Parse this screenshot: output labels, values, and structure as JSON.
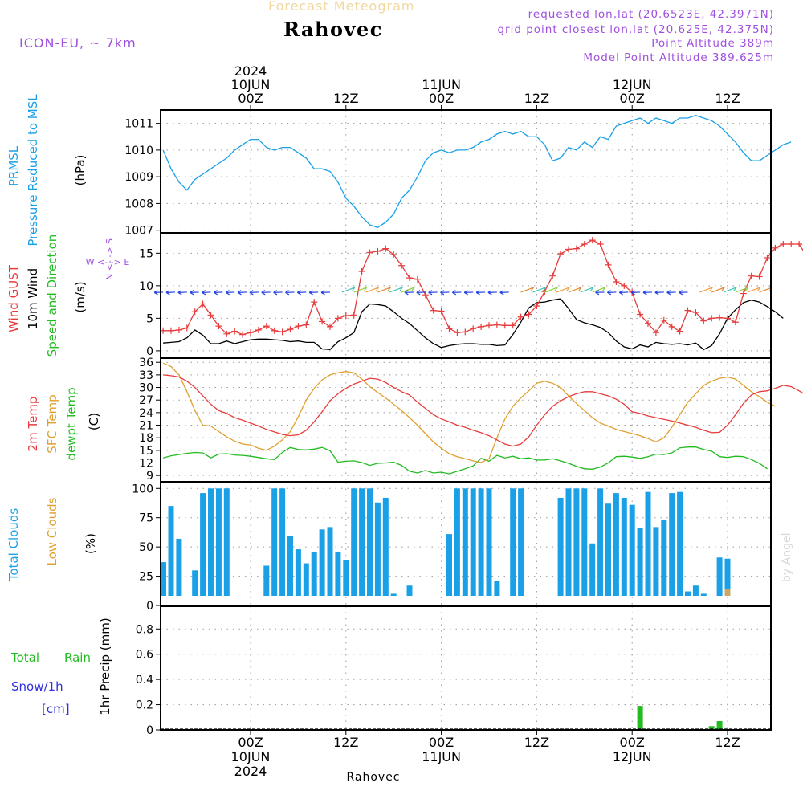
{
  "header": {
    "title": "Forecast Meteogram",
    "location": "Rahovec",
    "model": "ICON-EU, ~ 7km",
    "requested": "requested lon,lat (20.6523E, 42.3971N)",
    "grid_point": "grid point closest lon,lat (20.625E, 42.375N)",
    "point_alt": "Point Altitude 389m",
    "model_alt": "Model Point Altitude 389.625m"
  },
  "footer": {
    "location": "Rahovec"
  },
  "watermark": "by Angel",
  "time_axis": {
    "top_labels": [
      {
        "t": 0,
        "lines": [
          "2024",
          "10JUN",
          "00Z"
        ]
      },
      {
        "t": 12,
        "lines": [
          "12Z"
        ]
      },
      {
        "t": 24,
        "lines": [
          "11JUN",
          "00Z"
        ]
      },
      {
        "t": 36,
        "lines": [
          "12Z"
        ]
      },
      {
        "t": 48,
        "lines": [
          "12JUN",
          "00Z"
        ]
      },
      {
        "t": 60,
        "lines": [
          "12Z"
        ]
      }
    ],
    "bottom_labels": [
      {
        "t": 0,
        "lines": [
          "00Z",
          "10JUN",
          "2024"
        ]
      },
      {
        "t": 12,
        "lines": [
          "12Z"
        ]
      },
      {
        "t": 24,
        "lines": [
          "00Z",
          "11JUN"
        ]
      },
      {
        "t": 36,
        "lines": [
          "12Z"
        ]
      },
      {
        "t": 48,
        "lines": [
          "00Z",
          "12JUN"
        ]
      },
      {
        "t": 60,
        "lines": [
          "12Z"
        ]
      }
    ]
  },
  "panel_labels": {
    "pressure": {
      "lines": [
        {
          "text": "PRMSL",
          "color": "#1aa0e6"
        },
        {
          "text": "Pressure Reduced to MSL",
          "color": "#1aa0e6"
        }
      ],
      "unit": "(hPa)"
    },
    "wind": {
      "lines": [
        {
          "text": "Wind GUST",
          "color": "#e83c3c"
        },
        {
          "text": "10m Wind",
          "color": "#000000"
        },
        {
          "text": "Speed and Direction",
          "color": "#22bb22"
        }
      ],
      "unit": "(m/s)",
      "compass_ns": "N <- -> S",
      "compass_we": "W <- -> E"
    },
    "temp": {
      "lines": [
        {
          "text": "2m Temp",
          "color": "#e83c3c"
        },
        {
          "text": "SFC Temp",
          "color": "#e0a030"
        },
        {
          "text": "dewpt Temp",
          "color": "#22bb22"
        }
      ],
      "unit": "(C)"
    },
    "clouds": {
      "lines": [
        {
          "text": "Total Clouds",
          "color": "#1aa0e6"
        },
        {
          "text": "Low Clouds",
          "color": "#e0a030"
        }
      ],
      "unit": "(%)"
    },
    "precip": {
      "legend_total": "Total",
      "legend_rain": "Rain",
      "legend_snow": "Snow/1h",
      "legend_cm": "[cm]",
      "axis_label": "1hr Precip (mm)"
    }
  },
  "chart_data": [
    {
      "type": "line",
      "title": "",
      "ylabel": "(hPa)",
      "ylim": [
        1006.9,
        1011.5
      ],
      "yticks": [
        1007,
        1008,
        1009,
        1010,
        1011
      ],
      "x_start": -11,
      "x_step": 1,
      "colors": {
        "line": "#1aa0e6"
      },
      "series": [
        {
          "name": "PRMSL",
          "values": [
            1010.0,
            1009.3,
            1008.8,
            1008.5,
            1008.9,
            1009.1,
            1009.3,
            1009.5,
            1009.7,
            1010.0,
            1010.2,
            1010.4,
            1010.4,
            1010.1,
            1010.0,
            1010.1,
            1010.1,
            1009.9,
            1009.7,
            1009.3,
            1009.3,
            1009.2,
            1008.8,
            1008.2,
            1007.9,
            1007.5,
            1007.2,
            1007.1,
            1007.3,
            1007.6,
            1008.2,
            1008.5,
            1009.0,
            1009.6,
            1009.9,
            1010.0,
            1009.9,
            1010.0,
            1010.0,
            1010.1,
            1010.3,
            1010.4,
            1010.6,
            1010.7,
            1010.6,
            1010.7,
            1010.5,
            1010.5,
            1010.2,
            1009.6,
            1009.7,
            1010.1,
            1010.0,
            1010.3,
            1010.1,
            1010.5,
            1010.4,
            1010.9,
            1011.0,
            1011.1,
            1011.2,
            1011.0,
            1011.2,
            1011.1,
            1011.0,
            1011.2,
            1011.2,
            1011.3,
            1011.2,
            1011.1,
            1010.9,
            1010.6,
            1010.3,
            1009.9,
            1009.6,
            1009.6,
            1009.8,
            1010.0,
            1010.2,
            1010.3
          ]
        }
      ]
    },
    {
      "type": "line",
      "title": "",
      "ylabel": "(m/s)",
      "ylim": [
        -1,
        18
      ],
      "yticks": [
        0,
        5,
        10,
        15
      ],
      "x_start": -11,
      "x_step": 1,
      "colors": {
        "gust": "#e83c3c",
        "wind": "#000000"
      },
      "series": [
        {
          "name": "Wind GUST",
          "values": [
            3.1,
            3.1,
            3.2,
            3.5,
            6.0,
            7.2,
            5.5,
            3.8,
            2.6,
            3.0,
            2.5,
            2.8,
            3.2,
            3.8,
            3.1,
            2.9,
            3.3,
            3.8,
            4.0,
            7.5,
            4.5,
            3.7,
            5.0,
            5.4,
            5.5,
            12.2,
            15.1,
            15.3,
            15.7,
            14.8,
            13.1,
            11.2,
            11.0,
            8.6,
            6.2,
            6.1,
            3.4,
            2.8,
            2.9,
            3.4,
            3.7,
            3.9,
            4.0,
            3.9,
            3.9,
            5.2,
            5.6,
            6.9,
            9.1,
            11.5,
            14.9,
            15.6,
            15.7,
            16.4,
            17.0,
            16.4,
            13.2,
            10.6,
            10.0,
            9.0,
            5.6,
            4.2,
            2.8,
            4.7,
            3.7,
            3.0,
            6.2,
            5.9,
            4.6,
            5.0,
            5.1,
            5.0,
            4.4,
            8.8,
            11.5,
            11.4,
            14.3,
            15.8,
            16.4,
            16.4,
            16.4,
            14.5,
            12.9
          ]
        },
        {
          "name": "10m Wind",
          "values": [
            1.2,
            1.3,
            1.4,
            2.0,
            3.2,
            2.4,
            1.1,
            1.1,
            1.5,
            1.1,
            1.4,
            1.7,
            1.8,
            1.8,
            1.7,
            1.6,
            1.4,
            1.5,
            1.3,
            1.3,
            0.3,
            0.2,
            1.4,
            2.0,
            2.8,
            6.0,
            7.2,
            7.1,
            6.9,
            6.0,
            5.0,
            4.2,
            3.1,
            2.0,
            1.1,
            0.5,
            0.8,
            1.0,
            1.1,
            1.1,
            1.0,
            1.0,
            0.8,
            0.9,
            2.5,
            4.4,
            6.6,
            7.4,
            7.5,
            7.8,
            8.0,
            6.5,
            4.8,
            4.3,
            4.0,
            3.6,
            2.8,
            1.5,
            0.6,
            0.3,
            0.9,
            0.6,
            1.3,
            1.1,
            1.0,
            1.1,
            0.9,
            1.2,
            0.2,
            0.8,
            2.6,
            5.0,
            6.3,
            7.4,
            7.8,
            7.5,
            6.8,
            6.0,
            5.0
          ]
        }
      ]
    },
    {
      "type": "line",
      "title": "",
      "ylabel": "(C)",
      "ylim": [
        7.5,
        37
      ],
      "yticks": [
        9,
        12,
        15,
        18,
        21,
        24,
        27,
        30,
        33,
        36
      ],
      "x_start": -11,
      "x_step": 1,
      "colors": {
        "t2m": "#e83c3c",
        "sfc": "#e0a030",
        "dew": "#22bb22"
      },
      "series": [
        {
          "name": "2m Temp",
          "values": [
            33.0,
            32.8,
            32.5,
            31.5,
            30.0,
            28.0,
            26.0,
            24.5,
            23.8,
            22.8,
            22.2,
            21.5,
            20.8,
            20.0,
            19.4,
            18.8,
            18.5,
            18.7,
            19.8,
            21.8,
            24.2,
            26.8,
            28.5,
            29.8,
            30.8,
            31.5,
            32.2,
            32.0,
            31.2,
            30.0,
            29.0,
            28.2,
            26.5,
            25.0,
            23.5,
            22.5,
            21.8,
            21.0,
            20.5,
            19.8,
            19.2,
            18.5,
            17.5,
            16.5,
            16.0,
            16.5,
            18.2,
            21.0,
            23.5,
            25.5,
            26.8,
            27.8,
            28.5,
            29.0,
            29.0,
            28.5,
            28.0,
            27.2,
            26.0,
            24.2,
            23.8,
            23.2,
            22.8,
            22.4,
            22.0,
            21.5,
            21.0,
            20.5,
            19.8,
            19.2,
            19.3,
            21.0,
            23.5,
            26.2,
            28.2,
            29.0,
            29.2,
            29.8,
            30.5,
            30.2,
            29.2,
            28.0,
            26.5
          ]
        },
        {
          "name": "SFC Temp",
          "values": [
            35.8,
            35.0,
            33.0,
            29.0,
            24.5,
            21.0,
            20.8,
            19.5,
            18.2,
            17.2,
            16.5,
            16.3,
            15.5,
            15.0,
            16.0,
            17.5,
            19.5,
            23.0,
            27.0,
            29.8,
            31.8,
            33.0,
            33.5,
            33.8,
            33.5,
            32.0,
            30.2,
            28.8,
            27.5,
            26.0,
            24.5,
            22.8,
            21.0,
            19.0,
            17.0,
            15.5,
            14.2,
            13.5,
            13.0,
            12.5,
            12.1,
            13.0,
            18.0,
            22.5,
            25.5,
            27.5,
            29.2,
            31.0,
            31.5,
            31.0,
            30.0,
            28.0,
            26.2,
            24.5,
            22.8,
            21.5,
            20.8,
            20.0,
            19.5,
            19.0,
            18.5,
            17.8,
            17.0,
            18.0,
            20.5,
            23.5,
            26.5,
            28.5,
            30.5,
            31.5,
            32.2,
            32.5,
            32.0,
            30.5,
            29.0,
            27.8,
            26.5,
            25.5
          ]
        },
        {
          "name": "dewpt Temp",
          "values": [
            13.2,
            13.7,
            14.0,
            14.3,
            14.5,
            14.4,
            13.2,
            14.1,
            14.2,
            13.9,
            13.8,
            13.6,
            13.3,
            13.0,
            12.8,
            14.5,
            15.7,
            15.2,
            15.1,
            15.3,
            15.7,
            14.9,
            12.2,
            12.4,
            12.5,
            12.1,
            11.4,
            11.9,
            12.0,
            12.2,
            11.4,
            10.0,
            9.6,
            10.2,
            9.6,
            9.8,
            9.4,
            10.0,
            10.6,
            11.3,
            13.1,
            12.4,
            13.8,
            13.2,
            13.6,
            13.0,
            13.2,
            12.7,
            12.7,
            13.0,
            12.5,
            11.9,
            11.2,
            10.6,
            10.5,
            11.0,
            12.0,
            13.5,
            13.6,
            13.4,
            13.1,
            13.5,
            14.1,
            14.0,
            14.4,
            15.6,
            15.8,
            15.8,
            15.2,
            14.8,
            13.5,
            13.3,
            13.6,
            13.5,
            12.8,
            11.9,
            10.6
          ]
        }
      ]
    },
    {
      "type": "bar",
      "title": "",
      "ylabel": "(%)",
      "ylim": [
        0,
        105
      ],
      "yticks": [
        0,
        25,
        50,
        75,
        100
      ],
      "x_start": -11,
      "x_step": 1,
      "colors": {
        "total": "#1aa0e6",
        "low": "#c8a868"
      },
      "series": [
        {
          "name": "Total Clouds",
          "values": [
            37,
            85,
            57,
            5,
            30,
            96,
            100,
            100,
            100,
            4,
            1,
            8,
            4,
            34,
            100,
            100,
            59,
            48,
            36,
            46,
            65,
            67,
            46,
            39,
            100,
            100,
            100,
            88,
            92,
            10,
            7,
            17,
            3,
            1,
            0,
            0,
            61,
            100,
            100,
            100,
            100,
            100,
            21,
            3,
            100,
            100,
            5,
            6,
            0,
            0,
            92,
            100,
            100,
            100,
            53,
            100,
            87,
            96,
            92,
            86,
            66,
            97,
            67,
            73,
            96,
            97,
            12,
            17,
            10,
            5,
            41,
            40,
            7,
            1,
            1,
            1,
            1,
            1
          ]
        },
        {
          "name": "Low Clouds",
          "values": [
            0,
            0,
            0,
            0,
            0,
            0,
            0,
            0,
            0,
            0,
            0,
            0,
            0,
            0,
            0,
            0,
            0,
            0,
            0,
            0,
            0,
            0,
            0,
            0,
            0,
            0,
            0,
            0,
            0,
            0,
            0,
            0,
            0,
            0,
            0,
            0,
            0,
            0,
            0,
            0,
            0,
            0,
            0,
            0,
            0,
            0,
            0,
            0,
            0,
            0,
            0,
            0,
            0,
            0,
            0,
            0,
            0,
            0,
            0,
            0,
            0,
            0,
            0,
            0,
            0,
            0,
            0,
            0,
            0,
            0,
            8,
            14,
            0,
            0,
            0,
            0,
            0,
            0
          ]
        }
      ]
    },
    {
      "type": "bar",
      "title": "",
      "ylabel": "1hr Precip (mm)",
      "ylim": [
        0,
        0.98
      ],
      "yticks": [
        0,
        0.2,
        0.4,
        0.6,
        0.8
      ],
      "colors": {
        "rain": "#22bb22"
      },
      "series": [
        {
          "name": "Total Rain",
          "points": [
            {
              "t": 49,
              "v": 0.19
            },
            {
              "t": 58,
              "v": 0.03
            },
            {
              "t": 59,
              "v": 0.07
            }
          ]
        }
      ]
    }
  ]
}
